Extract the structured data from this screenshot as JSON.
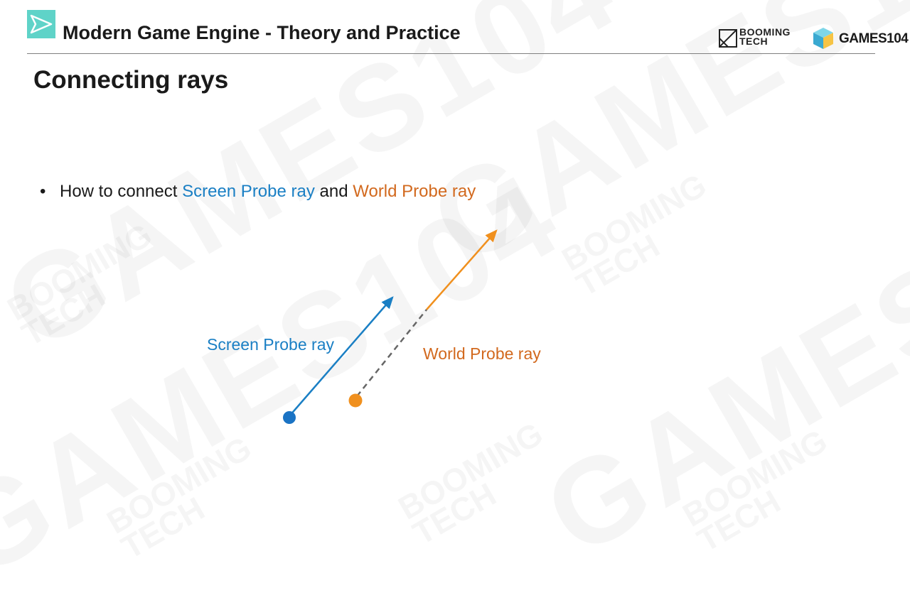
{
  "header": {
    "title": "Modern Game Engine - Theory and Practice",
    "logo_booming_line1": "BOOMING",
    "logo_booming_line2": "TECH",
    "logo_games": "GAMES104"
  },
  "slide": {
    "title": "Connecting rays",
    "bullet": {
      "prefix": "How to connect ",
      "screen_ray_text": "Screen Probe ray",
      "middle": " and ",
      "world_ray_text": "World Probe ray"
    }
  },
  "diagram": {
    "screen_label": "Screen Probe ray",
    "world_label": "World Probe ray"
  },
  "colors": {
    "screen_ray": "#1a7fc4",
    "world_ray": "#f0901e",
    "dashed_connector": "#666666",
    "header_icon": "#4fd1c5"
  }
}
